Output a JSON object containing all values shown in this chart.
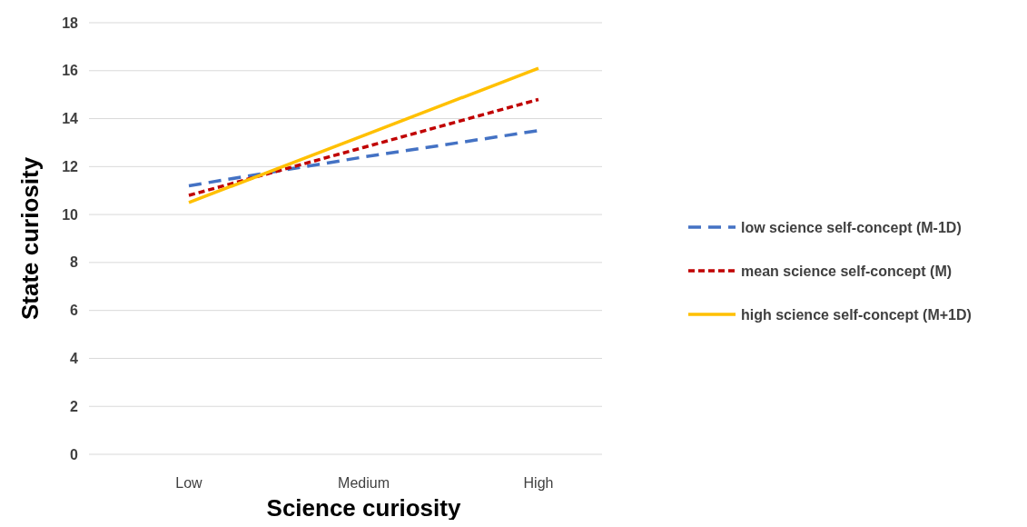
{
  "chart_data": {
    "type": "line",
    "xlabel": "Science curiosity",
    "ylabel": "State curiosity",
    "categories": [
      "Low",
      "Medium",
      "High"
    ],
    "series": [
      {
        "name": "low science self-concept (M-1D)",
        "color": "#4472c4",
        "line_style": "dashed",
        "values": [
          11.2,
          12.4,
          13.5
        ]
      },
      {
        "name": "mean science self-concept (M)",
        "color": "#c00000",
        "line_style": "dotted",
        "values": [
          10.8,
          12.8,
          14.8
        ]
      },
      {
        "name": "high science self-concept (M+1D)",
        "color": "#ffc000",
        "line_style": "solid",
        "values": [
          10.5,
          13.3,
          16.1
        ]
      }
    ],
    "ylim": [
      0,
      18
    ],
    "yticks": [
      0,
      2,
      4,
      6,
      8,
      10,
      12,
      14,
      16,
      18
    ],
    "grid": "y",
    "legend": "right",
    "marker": "none"
  }
}
